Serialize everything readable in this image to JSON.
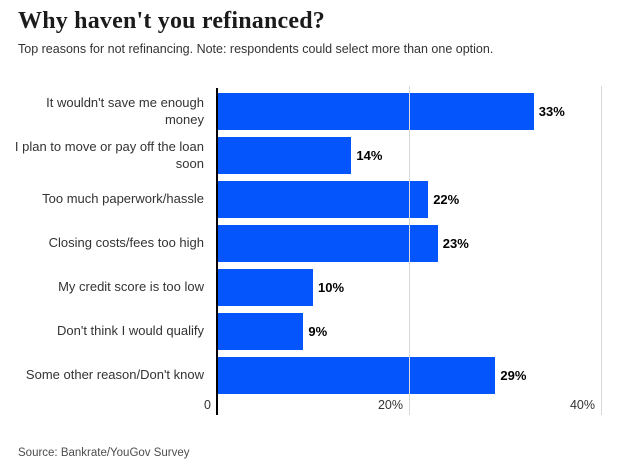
{
  "header": {
    "title": "Why haven't you refinanced?",
    "subtitle": "Top reasons for not refinancing. Note: respondents could select more than one option."
  },
  "chart_data": {
    "type": "bar",
    "orientation": "horizontal",
    "title": "Why haven't you refinanced?",
    "subtitle": "Top reasons for not refinancing. Note: respondents could select more than one option.",
    "categories": [
      "It wouldn't save me enough money",
      "I plan to move or pay off the loan soon",
      "Too much paperwork/hassle",
      "Closing costs/fees too high",
      "My credit score is too low",
      "Don't think I would qualify",
      "Some other reason/Don't know"
    ],
    "values": [
      33,
      14,
      22,
      23,
      10,
      9,
      29
    ],
    "value_labels": [
      "33%",
      "14%",
      "22%",
      "23%",
      "10%",
      "9%",
      "29%"
    ],
    "xlabel": "",
    "ylabel": "",
    "xlim": [
      0,
      41
    ],
    "x_ticks": [
      {
        "label": "0",
        "value": 0
      },
      {
        "label": "20%",
        "value": 20
      },
      {
        "label": "40%",
        "value": 40
      }
    ],
    "grid": true,
    "legend": false,
    "bar_color": "#0456fc",
    "gridline_color": "#d8d8d8",
    "axis_color": "#000000",
    "label_color": "#333333",
    "value_label_color": "#000000"
  },
  "footer": {
    "source": "Source: Bankrate/YouGov Survey"
  }
}
